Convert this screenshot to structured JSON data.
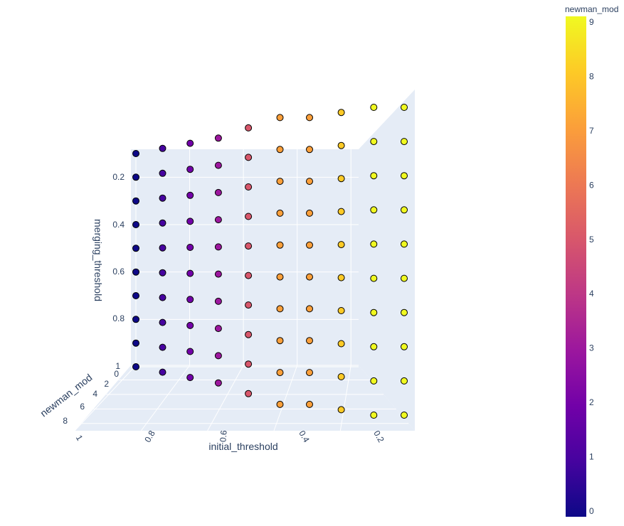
{
  "chart_data": {
    "type": "scatter3d",
    "x_label": "initial_threshold",
    "y_label": "newman_mod",
    "z_label": "merging_threshold",
    "colorbar_title": "newman_mod",
    "x_ticks": [
      "1",
      "0.8",
      "0.6",
      "0.4",
      "0.2"
    ],
    "y_ticks": [
      "0",
      "2",
      "4",
      "6",
      "8"
    ],
    "z_ticks": [
      "0.2",
      "0.4",
      "0.6",
      "0.8",
      "1"
    ],
    "colorbar_ticks": [
      "0",
      "1",
      "2",
      "3",
      "4",
      "5",
      "6",
      "7",
      "8",
      "9"
    ],
    "colorscale": [
      "#0d0887",
      "#46039f",
      "#7201a8",
      "#9c179e",
      "#bd3786",
      "#d8576b",
      "#ed7953",
      "#fb9f3a",
      "#fdca26",
      "#f0f921"
    ],
    "color_range": [
      0,
      9
    ],
    "initial_threshold": [
      1.0,
      0.9,
      0.8,
      0.7,
      0.6,
      0.5,
      0.4,
      0.3,
      0.2,
      0.1
    ],
    "merging_threshold": [
      0.1,
      0.2,
      0.3,
      0.4,
      0.5,
      0.6,
      0.7,
      0.8,
      0.9,
      1.0
    ],
    "newman_mod": [
      0,
      1,
      2,
      3,
      5,
      7,
      7,
      8,
      9,
      9
    ]
  }
}
